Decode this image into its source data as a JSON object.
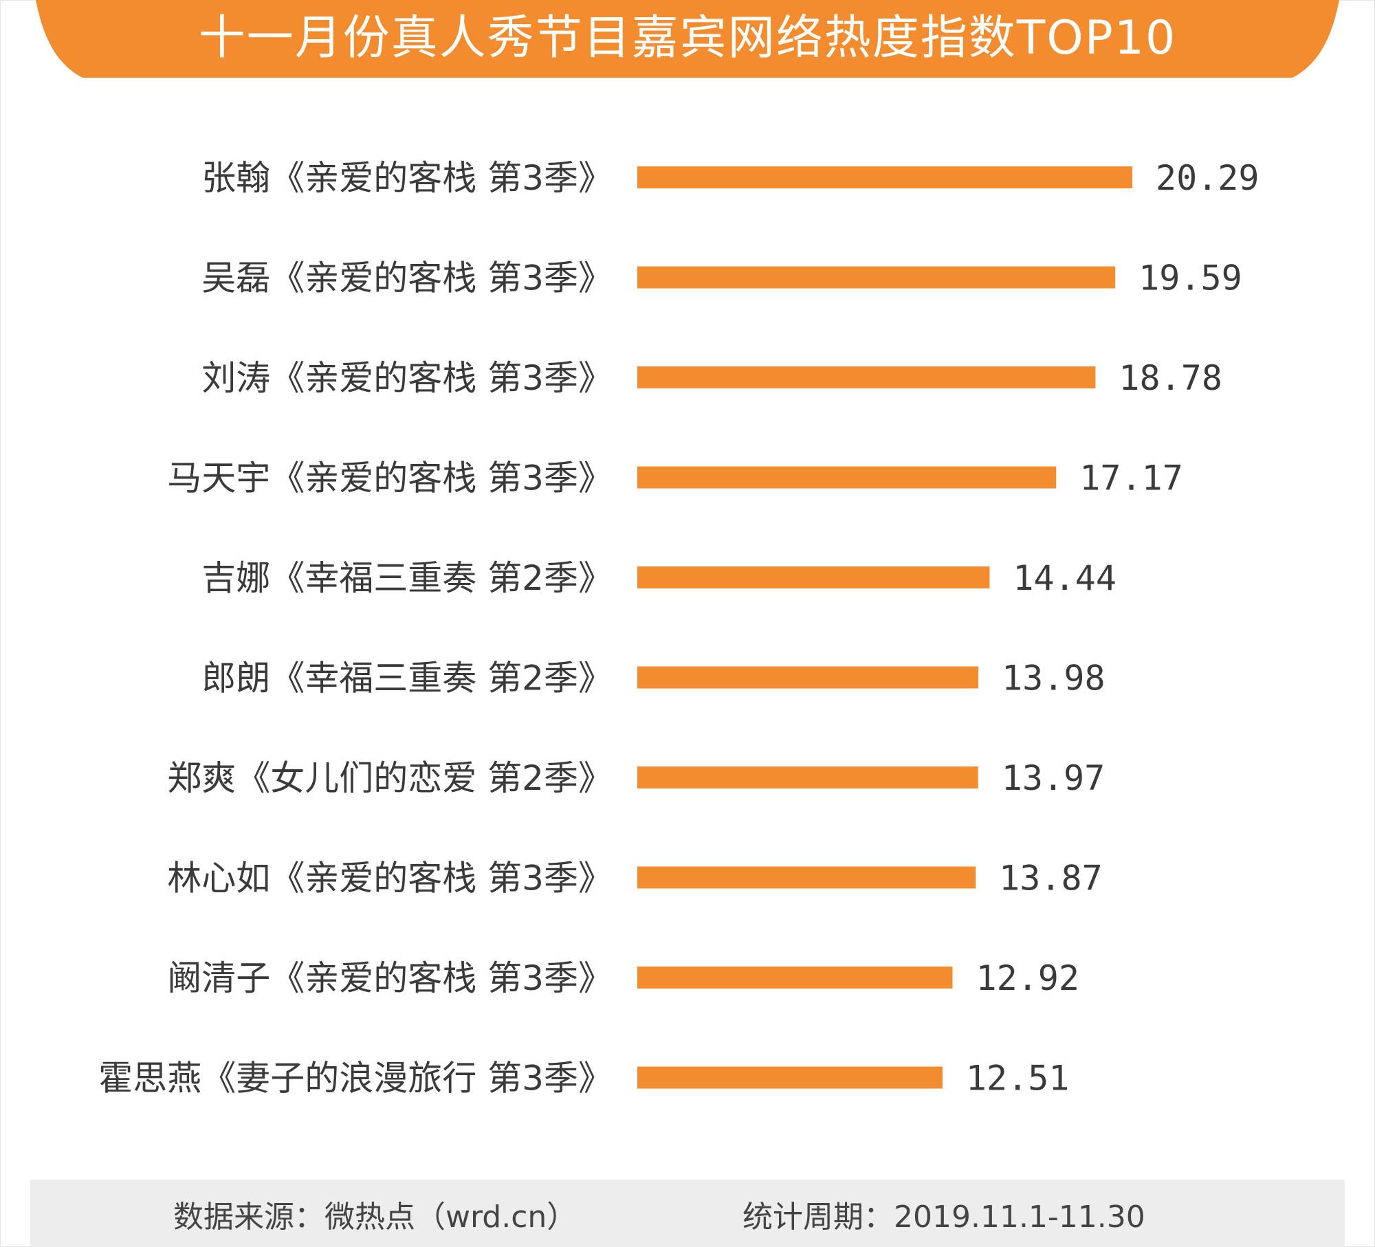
{
  "title": "十一月份真人秀节目嘉宾网络热度指数TOP10",
  "colors": {
    "accent": "#F28C2F",
    "text": "#3A3A3A",
    "footer_bg": "#EDEDED"
  },
  "footer": {
    "source": "数据来源：微热点（wrd.cn）",
    "period": "统计周期：2019.11.1-11.30"
  },
  "chart_data": {
    "type": "bar",
    "orientation": "horizontal",
    "title": "十一月份真人秀节目嘉宾网络热度指数TOP10",
    "xlabel": "",
    "ylabel": "",
    "grid": false,
    "legend": "none",
    "categories": [
      "张翰《亲爱的客栈 第3季》",
      "吴磊《亲爱的客栈 第3季》",
      "刘涛《亲爱的客栈 第3季》",
      "马天宇《亲爱的客栈 第3季》",
      "吉娜《幸福三重奏 第2季》",
      "郎朗《幸福三重奏 第2季》",
      "郑爽《女儿们的恋爱 第2季》",
      "林心如《亲爱的客栈 第3季》",
      "阚清子《亲爱的客栈 第3季》",
      "霍思燕《妻子的浪漫旅行 第3季》"
    ],
    "value_labels": [
      "20.29",
      "19.59",
      "18.78",
      "17.17",
      "14.44",
      "13.98",
      "13.97",
      "13.87",
      "12.92",
      "12.51"
    ],
    "values": [
      20.29,
      19.59,
      18.78,
      17.17,
      14.44,
      13.98,
      13.97,
      13.87,
      12.92,
      12.51
    ]
  }
}
